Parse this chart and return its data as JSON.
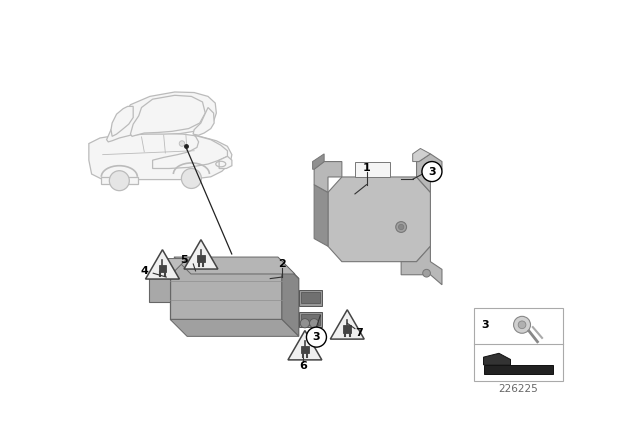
{
  "background_color": "#ffffff",
  "border_color": "#dddddd",
  "part_number": "226225",
  "car_color": "#f5f5f5",
  "car_edge": "#bbbbbb",
  "bracket_color": "#b8b8b8",
  "bracket_dark": "#909090",
  "bracket_edge": "#777777",
  "hub_color": "#b0b0b0",
  "hub_dark": "#888888",
  "hub_edge": "#666666",
  "tri_face": "#f0f0f0",
  "tri_edge": "#444444",
  "label_color": "#000000",
  "leader_color": "#333333"
}
